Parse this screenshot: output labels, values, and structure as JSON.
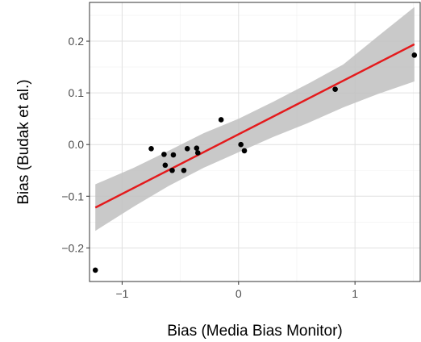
{
  "chart_data": {
    "type": "scatter",
    "title": "",
    "xlabel": "Bias (Media Bias Monitor)",
    "ylabel": "Bias (Budak et al.)",
    "xlim": [
      -1.28,
      1.56
    ],
    "ylim": [
      -0.265,
      0.275
    ],
    "grid": true,
    "x_ticks": [
      -1,
      0,
      1
    ],
    "x_tick_labels": [
      "−1",
      "0",
      "1"
    ],
    "y_ticks": [
      -0.2,
      -0.1,
      0.0,
      0.1,
      0.2
    ],
    "y_tick_labels": [
      "−0.2",
      "−0.1",
      "0.0",
      "0.1",
      "0.2"
    ],
    "points": [
      {
        "x": -1.23,
        "y": -0.243
      },
      {
        "x": -0.75,
        "y": -0.008
      },
      {
        "x": -0.64,
        "y": -0.019
      },
      {
        "x": -0.63,
        "y": -0.04
      },
      {
        "x": -0.57,
        "y": -0.05
      },
      {
        "x": -0.56,
        "y": -0.02
      },
      {
        "x": -0.47,
        "y": -0.05
      },
      {
        "x": -0.44,
        "y": -0.008
      },
      {
        "x": -0.36,
        "y": -0.007
      },
      {
        "x": -0.35,
        "y": -0.016
      },
      {
        "x": -0.15,
        "y": 0.048
      },
      {
        "x": 0.02,
        "y": 0.0
      },
      {
        "x": 0.05,
        "y": -0.012
      },
      {
        "x": 0.83,
        "y": 0.107
      },
      {
        "x": 1.51,
        "y": 0.173
      }
    ],
    "fit_line": {
      "x": [
        -1.23,
        1.51
      ],
      "y": [
        -0.122,
        0.194
      ]
    },
    "confidence_band": {
      "x": [
        -1.23,
        -0.9,
        -0.6,
        -0.3,
        0.0,
        0.3,
        0.6,
        0.9,
        1.2,
        1.51
      ],
      "lower": [
        -0.167,
        -0.12,
        -0.08,
        -0.045,
        -0.015,
        0.015,
        0.042,
        0.072,
        0.098,
        0.122
      ],
      "upper": [
        -0.077,
        -0.045,
        -0.012,
        0.022,
        0.05,
        0.083,
        0.118,
        0.155,
        0.21,
        0.266
      ]
    },
    "colors": {
      "points": "#000000",
      "fit_line": "#e41a1c",
      "band": "#bfbfbf",
      "grid_major": "#e0e0e0",
      "grid_minor": "#f0f0f0",
      "panel_border": "#333333"
    }
  }
}
